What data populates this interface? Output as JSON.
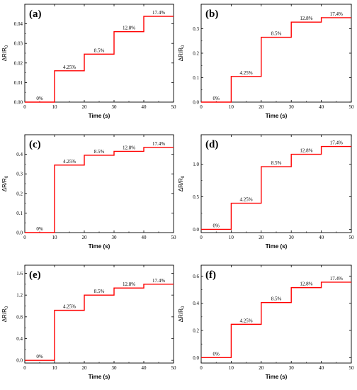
{
  "chart_data": [
    {
      "type": "line",
      "panel_label": "(a)",
      "xlabel": "Time (s)",
      "ylabel": "ΔR/R",
      "ylabel_sub": "0",
      "xlim": [
        0,
        50
      ],
      "ylim": [
        0,
        0.05
      ],
      "xticks": [
        0,
        10,
        20,
        30,
        40,
        50
      ],
      "yticks": [
        0.0,
        0.01,
        0.02,
        0.03,
        0.04
      ],
      "ytick_labels": [
        "0.00",
        "0.01",
        "0.02",
        "0.03",
        "0.04"
      ],
      "steps": [
        {
          "x0": 0,
          "x1": 10,
          "y": 0.0,
          "label": "0%"
        },
        {
          "x0": 10,
          "x1": 20,
          "y": 0.016,
          "label": "4.25%"
        },
        {
          "x0": 20,
          "x1": 30,
          "y": 0.0245,
          "label": "8.5%"
        },
        {
          "x0": 30,
          "x1": 40,
          "y": 0.036,
          "label": "12.8%"
        },
        {
          "x0": 40,
          "x1": 50,
          "y": 0.0438,
          "label": "17.4%"
        }
      ],
      "color": "#ff0000"
    },
    {
      "type": "line",
      "panel_label": "(b)",
      "xlabel": "Time (s)",
      "ylabel": "ΔR/R",
      "ylabel_sub": "0",
      "xlim": [
        0,
        50
      ],
      "ylim": [
        0,
        0.4
      ],
      "xticks": [
        0,
        10,
        20,
        30,
        40,
        50
      ],
      "yticks": [
        0.0,
        0.1,
        0.2,
        0.3
      ],
      "ytick_labels": [
        "0.0",
        "0.1",
        "0.2",
        "0.3"
      ],
      "steps": [
        {
          "x0": 0,
          "x1": 10,
          "y": 0.0,
          "label": "0%"
        },
        {
          "x0": 10,
          "x1": 20,
          "y": 0.105,
          "label": "4.25%"
        },
        {
          "x0": 20,
          "x1": 30,
          "y": 0.265,
          "label": "8.5%"
        },
        {
          "x0": 30,
          "x1": 40,
          "y": 0.327,
          "label": "12.8%"
        },
        {
          "x0": 40,
          "x1": 50,
          "y": 0.345,
          "label": "17.4%"
        }
      ],
      "color": "#ff0000"
    },
    {
      "type": "line",
      "panel_label": "(c)",
      "xlabel": "Time (s)",
      "ylabel": "ΔR/R",
      "ylabel_sub": "0",
      "xlim": [
        0,
        50
      ],
      "ylim": [
        0,
        0.5
      ],
      "xticks": [
        0,
        10,
        20,
        30,
        40,
        50
      ],
      "yticks": [
        0.0,
        0.1,
        0.2,
        0.3,
        0.4
      ],
      "ytick_labels": [
        "0.0",
        "0.1",
        "0.2",
        "0.3",
        "0.4"
      ],
      "steps": [
        {
          "x0": 0,
          "x1": 10,
          "y": 0.0,
          "label": "0%"
        },
        {
          "x0": 10,
          "x1": 20,
          "y": 0.345,
          "label": "4.25%"
        },
        {
          "x0": 20,
          "x1": 30,
          "y": 0.395,
          "label": "8.5%"
        },
        {
          "x0": 30,
          "x1": 40,
          "y": 0.415,
          "label": "12.8%"
        },
        {
          "x0": 40,
          "x1": 50,
          "y": 0.435,
          "label": "17.4%"
        }
      ],
      "color": "#ff0000"
    },
    {
      "type": "line",
      "panel_label": "(d)",
      "xlabel": "Time (s)",
      "ylabel": "ΔR/R",
      "ylabel_sub": "0",
      "xlim": [
        0,
        50
      ],
      "ylim": [
        -0.05,
        1.45
      ],
      "xticks": [
        0,
        10,
        20,
        30,
        40,
        50
      ],
      "yticks": [
        0.0,
        0.5,
        1.0
      ],
      "ytick_labels": [
        "0.0",
        "0.5",
        "1.0"
      ],
      "steps": [
        {
          "x0": 0,
          "x1": 10,
          "y": 0.0,
          "label": "0%"
        },
        {
          "x0": 10,
          "x1": 20,
          "y": 0.4,
          "label": "4.25%"
        },
        {
          "x0": 20,
          "x1": 30,
          "y": 0.96,
          "label": "8.5%"
        },
        {
          "x0": 30,
          "x1": 40,
          "y": 1.15,
          "label": "12.8%"
        },
        {
          "x0": 40,
          "x1": 50,
          "y": 1.27,
          "label": "17.4%"
        }
      ],
      "color": "#ff0000"
    },
    {
      "type": "line",
      "panel_label": "(e)",
      "xlabel": "Time (s)",
      "ylabel": "ΔR/R",
      "ylabel_sub": "0",
      "xlim": [
        0,
        50
      ],
      "ylim": [
        -0.05,
        1.75
      ],
      "xticks": [
        0,
        10,
        20,
        30,
        40,
        50
      ],
      "yticks": [
        0.0,
        0.4,
        0.8,
        1.2,
        1.6
      ],
      "ytick_labels": [
        "0.0",
        "0.4",
        "0.8",
        "1.2",
        "1.6"
      ],
      "steps": [
        {
          "x0": 0,
          "x1": 10,
          "y": 0.0,
          "label": "0%"
        },
        {
          "x0": 10,
          "x1": 20,
          "y": 0.92,
          "label": "4.25%"
        },
        {
          "x0": 20,
          "x1": 30,
          "y": 1.2,
          "label": "8.5%"
        },
        {
          "x0": 30,
          "x1": 40,
          "y": 1.33,
          "label": "12.8%"
        },
        {
          "x0": 40,
          "x1": 50,
          "y": 1.4,
          "label": "17.4%"
        }
      ],
      "color": "#ff0000"
    },
    {
      "type": "line",
      "panel_label": "(f)",
      "xlabel": "Time (s)",
      "ylabel": "ΔR/R",
      "ylabel_sub": "0",
      "xlim": [
        0,
        50
      ],
      "ylim": [
        -0.04,
        0.68
      ],
      "xticks": [
        0,
        10,
        20,
        30,
        40,
        50
      ],
      "yticks": [
        0.0,
        0.2,
        0.4,
        0.6
      ],
      "ytick_labels": [
        "0.0",
        "0.2",
        "0.4",
        "0.6"
      ],
      "steps": [
        {
          "x0": 0,
          "x1": 10,
          "y": 0.0,
          "label": "0%"
        },
        {
          "x0": 10,
          "x1": 20,
          "y": 0.245,
          "label": "4.25%"
        },
        {
          "x0": 20,
          "x1": 30,
          "y": 0.405,
          "label": "8.5%"
        },
        {
          "x0": 30,
          "x1": 40,
          "y": 0.515,
          "label": "12.8%"
        },
        {
          "x0": 40,
          "x1": 50,
          "y": 0.555,
          "label": "17.4%"
        }
      ],
      "color": "#ff0000"
    }
  ]
}
